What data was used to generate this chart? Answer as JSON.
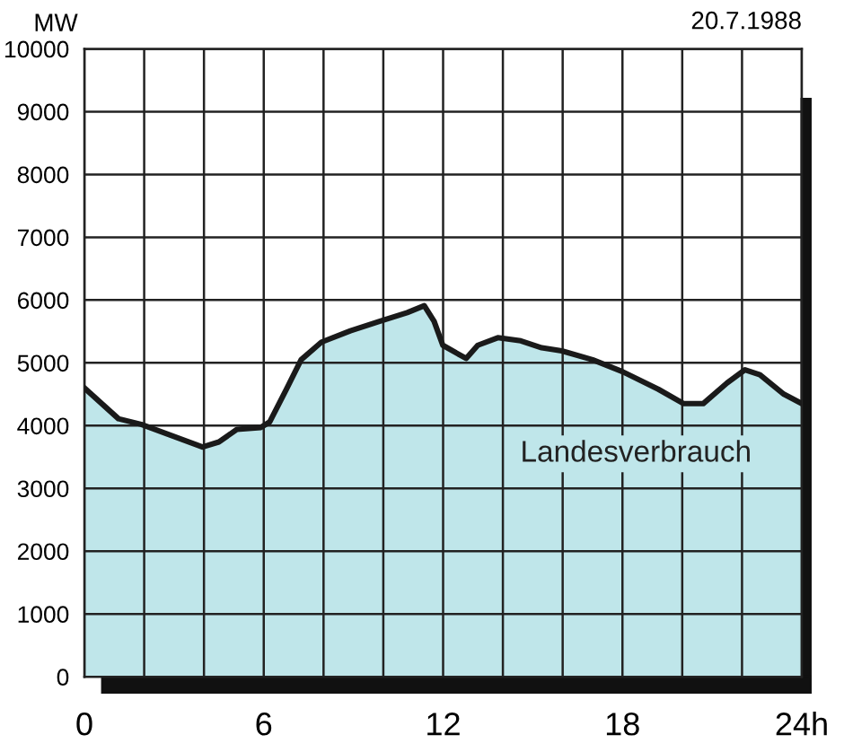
{
  "chart_data": {
    "type": "area",
    "title": "20.7.1988",
    "ylabel": "MW",
    "x": [
      0,
      1.14,
      1.9,
      3.95,
      4.5,
      5.1,
      5.9,
      6.2,
      6.76,
      7.25,
      7.93,
      8.9,
      9.87,
      10.8,
      11.37,
      11.7,
      11.99,
      12.77,
      13.16,
      13.83,
      14.6,
      15.3,
      15.97,
      17.0,
      18.0,
      19.2,
      20.05,
      20.7,
      21.5,
      22.1,
      22.6,
      23.4,
      24
    ],
    "series": [
      {
        "name": "Landesverbrauch",
        "color": "#bfe6ea",
        "values": [
          4600,
          4110,
          4020,
          3660,
          3740,
          3940,
          3970,
          4060,
          4580,
          5050,
          5330,
          5510,
          5660,
          5800,
          5910,
          5660,
          5280,
          5070,
          5280,
          5400,
          5350,
          5240,
          5190,
          5050,
          4860,
          4580,
          4350,
          4350,
          4680,
          4890,
          4810,
          4500,
          4350
        ]
      }
    ],
    "xlim": [
      0,
      24
    ],
    "xticks": [
      0,
      {
        "value": 2,
        "label": null
      },
      {
        "value": 4,
        "label": null
      },
      6,
      {
        "value": 8,
        "label": null
      },
      {
        "value": 10,
        "label": null
      },
      12,
      {
        "value": 14,
        "label": null
      },
      {
        "value": 16,
        "label": null
      },
      18,
      {
        "value": 20,
        "label": null
      },
      {
        "value": 22,
        "label": null
      },
      {
        "value": 24,
        "label": "24h"
      }
    ],
    "ylim": [
      0,
      10000
    ],
    "yticks": [
      0,
      1000,
      2000,
      3000,
      4000,
      5000,
      6000,
      7000,
      8000,
      9000,
      10000
    ],
    "grid": true,
    "legend": false,
    "marker": "none",
    "line_style": "solid"
  }
}
